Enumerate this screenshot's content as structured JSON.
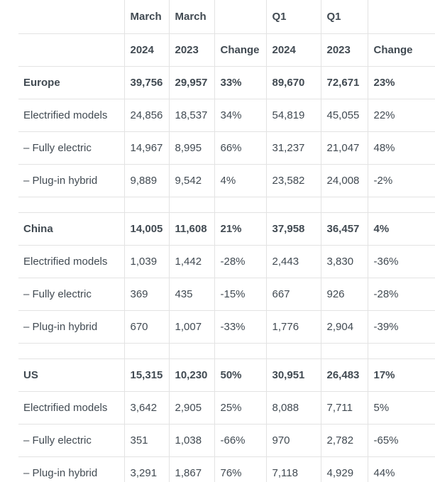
{
  "chart_data": {
    "type": "table",
    "header_rows": [
      [
        "",
        "March",
        "March",
        "",
        "Q1",
        "Q1",
        ""
      ],
      [
        "",
        "2024",
        "2023",
        "Change",
        "2024",
        "2023",
        "Change"
      ]
    ],
    "sections": [
      {
        "region": "Europe",
        "region_values": [
          "39,756",
          "29,957",
          "33%",
          "89,670",
          "72,671",
          "23%"
        ],
        "rows": [
          [
            "Electrified models",
            "24,856",
            "18,537",
            "34%",
            "54,819",
            "45,055",
            "22%"
          ],
          [
            "– Fully electric",
            "14,967",
            "8,995",
            "66%",
            "31,237",
            "21,047",
            "48%"
          ],
          [
            "– Plug-in hybrid",
            "9,889",
            "9,542",
            "4%",
            "23,582",
            "24,008",
            "-2%"
          ]
        ]
      },
      {
        "region": "China",
        "region_values": [
          "14,005",
          "11,608",
          "21%",
          "37,958",
          "36,457",
          "4%"
        ],
        "rows": [
          [
            "Electrified models",
            "1,039",
            "1,442",
            "-28%",
            "2,443",
            "3,830",
            "-36%"
          ],
          [
            "– Fully electric",
            "369",
            "435",
            "-15%",
            "667",
            "926",
            "-28%"
          ],
          [
            "– Plug-in hybrid",
            "670",
            "1,007",
            "-33%",
            "1,776",
            "2,904",
            "-39%"
          ]
        ]
      },
      {
        "region": "US",
        "region_values": [
          "15,315",
          "10,230",
          "50%",
          "30,951",
          "26,483",
          "17%"
        ],
        "rows": [
          [
            "Electrified models",
            "3,642",
            "2,905",
            "25%",
            "8,088",
            "7,711",
            "5%"
          ],
          [
            "– Fully electric",
            "351",
            "1,038",
            "-66%",
            "970",
            "2,782",
            "-65%"
          ],
          [
            "– Plug-in hybrid",
            "3,291",
            "1,867",
            "76%",
            "7,118",
            "4,929",
            "44%"
          ]
        ]
      }
    ],
    "layout_hints": {
      "grid": "on",
      "bold_rows": [
        "header",
        "region"
      ],
      "spacer_rows_between_sections": true
    },
    "style": {
      "text_color": "#414a52",
      "border_color": "#e3e3e3",
      "background": "#ffffff"
    }
  }
}
